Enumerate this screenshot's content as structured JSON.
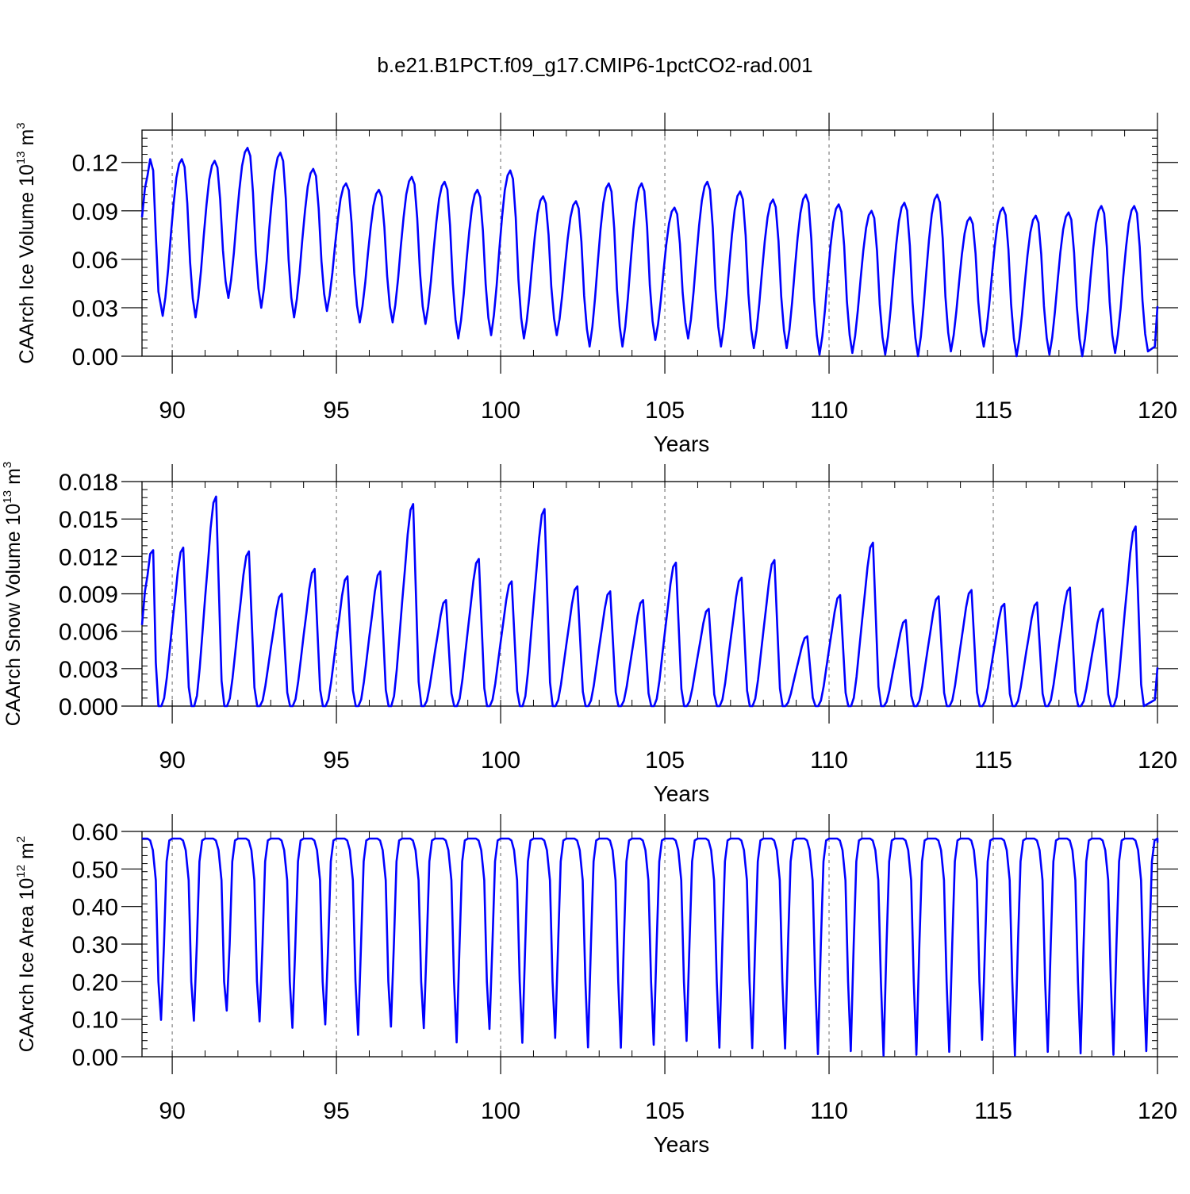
{
  "title": "b.e21.B1PCT.f09_g17.CMIP6-1pctCO2-rad.001",
  "chart_data": [
    {
      "type": "line",
      "ylabel_main": "CAArch Ice Volume 10",
      "ylabel_exp": "13",
      "ylabel_unit": " m",
      "ylabel_unit_exp": "3",
      "xlabel": "Years",
      "xlim": [
        89.08,
        120.0
      ],
      "ylim": [
        0,
        0.14
      ],
      "yticks": [
        "0.00",
        "0.03",
        "0.06",
        "0.09",
        "0.12"
      ],
      "xticks": [
        "90",
        "95",
        "100",
        "105",
        "110",
        "115",
        "120"
      ],
      "series": [
        {
          "color": "#0000ff",
          "maxima": [
            0.122,
            0.121,
            0.129,
            0.126,
            0.116,
            0.107,
            0.103,
            0.111,
            0.108,
            0.103,
            0.115,
            0.099,
            0.096,
            0.107,
            0.107,
            0.092,
            0.108,
            0.102,
            0.097,
            0.1,
            0.094,
            0.09,
            0.095,
            0.1,
            0.086,
            0.092,
            0.087,
            0.089,
            0.093
          ],
          "minima": [
            0.025,
            0.024,
            0.036,
            0.03,
            0.024,
            0.028,
            0.021,
            0.021,
            0.02,
            0.011,
            0.013,
            0.011,
            0.013,
            0.006,
            0.006,
            0.01,
            0.011,
            0.006,
            0.005,
            0.005,
            0.001,
            0.002,
            0.001,
            0.0,
            0.003,
            0.006,
            0.0,
            0.001,
            0.0,
            0.002,
            0.003
          ],
          "start_value": 0.086,
          "end_value": 0.031
        }
      ]
    },
    {
      "type": "line",
      "ylabel_main": "CAArch Snow Volume 10",
      "ylabel_exp": "13",
      "ylabel_unit": " m",
      "ylabel_unit_exp": "3",
      "xlabel": "Years",
      "xlim": [
        89.08,
        120.0
      ],
      "ylim": [
        0,
        0.018
      ],
      "yticks": [
        "0.000",
        "0.003",
        "0.006",
        "0.009",
        "0.012",
        "0.015",
        "0.018"
      ],
      "xticks": [
        "90",
        "95",
        "100",
        "105",
        "110",
        "115",
        "120"
      ],
      "series": [
        {
          "color": "#0000ff",
          "peaks": [
            0.0125,
            0.0127,
            0.0168,
            0.0124,
            0.009,
            0.011,
            0.0104,
            0.0108,
            0.0162,
            0.0085,
            0.0118,
            0.01,
            0.0158,
            0.0096,
            0.0092,
            0.0085,
            0.0115,
            0.0078,
            0.0103,
            0.0117,
            0.0056,
            0.0089,
            0.0131,
            0.0069,
            0.0088,
            0.0093,
            0.0082,
            0.0083,
            0.0095,
            0.0078,
            0.0144
          ],
          "start_value": 0.0065,
          "end_value": 0.0031
        }
      ]
    },
    {
      "type": "line",
      "ylabel_main": "CAArch Ice Area 10",
      "ylabel_exp": "12",
      "ylabel_unit": " m",
      "ylabel_unit_exp": "2",
      "xlabel": "Years",
      "xlim": [
        89.08,
        120.0
      ],
      "ylim": [
        0,
        0.6
      ],
      "yticks": [
        "0.00",
        "0.10",
        "0.20",
        "0.30",
        "0.40",
        "0.50",
        "0.60"
      ],
      "xticks": [
        "90",
        "95",
        "100",
        "105",
        "110",
        "115",
        "120"
      ],
      "series": [
        {
          "color": "#0000ff",
          "plateau": 0.581,
          "minima": [
            0.098,
            0.096,
            0.123,
            0.094,
            0.077,
            0.086,
            0.058,
            0.08,
            0.076,
            0.038,
            0.074,
            0.037,
            0.05,
            0.025,
            0.024,
            0.032,
            0.042,
            0.024,
            0.023,
            0.022,
            0.007,
            0.015,
            0.003,
            0.005,
            0.013,
            0.045,
            0.003,
            0.013,
            0.009,
            0.005,
            0.015
          ]
        }
      ]
    }
  ]
}
